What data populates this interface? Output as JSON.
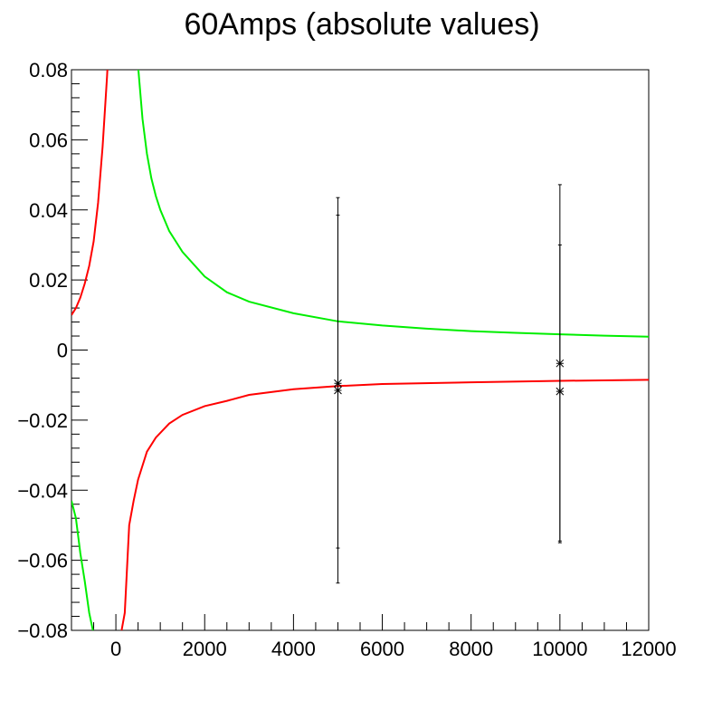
{
  "chart_data": {
    "type": "line",
    "title": "60Amps (absolute values)",
    "xlabel": "",
    "ylabel": "",
    "xlim": [
      -1000,
      12000
    ],
    "ylim": [
      -0.08,
      0.08
    ],
    "x_ticks": [
      0,
      2000,
      4000,
      6000,
      8000,
      10000,
      12000
    ],
    "x_tick_labels": [
      "0",
      "2000",
      "4000",
      "6000",
      "8000",
      "10000",
      "12000"
    ],
    "y_ticks": [
      -0.08,
      -0.06,
      -0.04,
      -0.02,
      0,
      0.02,
      0.04,
      0.06,
      0.08
    ],
    "y_tick_labels": [
      "−0.08",
      "−0.06",
      "−0.04",
      "−0.02",
      "0",
      "0.02",
      "0.04",
      "0.06",
      "0.08"
    ],
    "grid": false,
    "legend": "none",
    "series": [
      {
        "color": "#ff0000",
        "segments": [
          {
            "x": [
              -1000,
              -900,
              -800,
              -700,
              -600,
              -500,
              -400,
              -300,
              -200,
              -150
            ],
            "y": [
              0.01,
              0.012,
              0.015,
              0.019,
              0.024,
              0.031,
              0.042,
              0.058,
              0.078,
              0.09
            ]
          },
          {
            "x": [
              0,
              100,
              200,
              300,
              400,
              500,
              700,
              900,
              1200,
              1500,
              2000,
              2500,
              3000,
              4000,
              5000,
              6000,
              8000,
              10000,
              12000
            ],
            "y": [
              -0.09,
              -0.082,
              -0.075,
              -0.05,
              -0.043,
              -0.037,
              -0.029,
              -0.025,
              -0.021,
              -0.0185,
              -0.016,
              -0.0145,
              -0.0128,
              -0.0112,
              -0.0103,
              -0.0097,
              -0.0092,
              -0.0088,
              -0.0085
            ]
          }
        ]
      },
      {
        "color": "#00ee00",
        "segments": [
          {
            "x": [
              -1000,
              -900,
              -800,
              -700,
              -600,
              -500
            ],
            "y": [
              -0.043,
              -0.048,
              -0.058,
              -0.066,
              -0.075,
              -0.081
            ]
          },
          {
            "x": [
              500,
              600,
              700,
              800,
              900,
              1000,
              1200,
              1500,
              2000,
              2500,
              3000,
              4000,
              5000,
              6000,
              7000,
              8000,
              9000,
              10000,
              11000,
              12000
            ],
            "y": [
              0.081,
              0.066,
              0.056,
              0.049,
              0.044,
              0.04,
              0.034,
              0.028,
              0.021,
              0.0165,
              0.0138,
              0.0105,
              0.0082,
              0.007,
              0.0061,
              0.0054,
              0.0049,
              0.0045,
              0.0041,
              0.0038
            ]
          }
        ]
      }
    ],
    "points": [
      {
        "x": 5000,
        "y": -0.0095,
        "yerr_low": -0.0565,
        "yerr_high": 0.0385
      },
      {
        "x": 5000,
        "y": -0.0115,
        "yerr_low": -0.0665,
        "yerr_high": 0.0435
      },
      {
        "x": 10000,
        "y": -0.0038,
        "yerr_low": -0.0545,
        "yerr_high": 0.0472
      },
      {
        "x": 10000,
        "y": -0.0118,
        "yerr_low": -0.055,
        "yerr_high": 0.03
      }
    ]
  }
}
